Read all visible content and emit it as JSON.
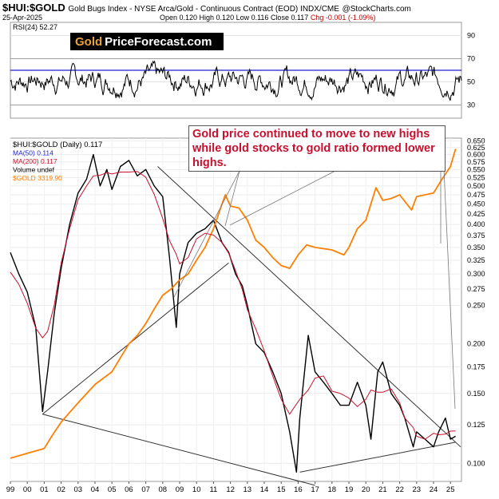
{
  "header": {
    "symbol": "$HUI:$GOLD",
    "description": "Gold Bugs Index - NYSE Arca/Gold - Continuous Contract (EOD) INDX/CME",
    "watermark": "@StockCharts.com",
    "date": "25-Apr-2025",
    "ohlc": "Open 0.120  High 0.120  Low 0.116  Close 0.117",
    "change": "Chg -0.001 (-1.09%)"
  },
  "logo": {
    "gold": "Gold",
    "rest": "PriceForecast.com"
  },
  "annotation": "Gold price continued to move to new highs while gold stocks to gold ratio formed lower highs.",
  "chart_data": [
    {
      "type": "line",
      "panel": "RSI",
      "legend": [
        "RSI(24) 52.27"
      ],
      "y_ticks": [
        30,
        50,
        70,
        90
      ],
      "ylim": [
        20,
        100
      ],
      "reference_lines": [
        70,
        60,
        30
      ],
      "colors": {
        "rsi": "#000000",
        "ref_60": "#1f1fcf",
        "ref_70_30": "#888888"
      }
    },
    {
      "type": "line",
      "panel": "price",
      "legend": [
        "$HUI:$GOLD (Daily) 0.117",
        "MA(50) 0.114",
        "MA(200) 0.117",
        "Volume undef",
        "$GOLD 3319.90"
      ],
      "x_tick_labels": [
        "99",
        "00",
        "01",
        "02",
        "03",
        "04",
        "05",
        "06",
        "07",
        "08",
        "09",
        "10",
        "11",
        "12",
        "13",
        "14",
        "15",
        "16",
        "17",
        "18",
        "19",
        "20",
        "21",
        "22",
        "23",
        "24",
        "25"
      ],
      "y_tick_labels": [
        "0.100",
        "0.125",
        "0.150",
        "0.175",
        "0.200",
        "0.250",
        "0.275",
        "0.300",
        "0.325",
        "0.350",
        "0.375",
        "0.400",
        "0.425",
        "0.450",
        "0.475",
        "0.500",
        "0.525",
        "0.550",
        "0.575",
        "0.600",
        "0.625",
        "0.650"
      ],
      "y_scale": "log",
      "ylim": [
        0.09,
        0.66
      ],
      "series": [
        {
          "name": "$HUI:$GOLD (Daily) 0.117",
          "color": "#000000",
          "x": [
            1999.0,
            1999.5,
            2000.0,
            2000.5,
            2000.9,
            2001.2,
            2001.6,
            2002.0,
            2002.5,
            2003.0,
            2003.5,
            2003.9,
            2004.3,
            2004.7,
            2005.0,
            2005.5,
            2006.0,
            2006.5,
            2007.0,
            2007.5,
            2008.0,
            2008.4,
            2008.8,
            2009.0,
            2009.5,
            2010.0,
            2010.5,
            2011.0,
            2011.5,
            2011.9,
            2012.3,
            2012.7,
            2013.0,
            2013.5,
            2014.0,
            2014.5,
            2015.0,
            2015.5,
            2015.9,
            2016.1,
            2016.6,
            2017.0,
            2017.5,
            2018.0,
            2018.5,
            2019.0,
            2019.5,
            2020.0,
            2020.3,
            2020.7,
            2021.0,
            2021.5,
            2022.0,
            2022.3,
            2022.8,
            2023.0,
            2023.5,
            2024.0,
            2024.3,
            2024.7,
            2025.0,
            2025.3
          ],
          "y": [
            0.34,
            0.3,
            0.27,
            0.22,
            0.135,
            0.17,
            0.24,
            0.31,
            0.4,
            0.48,
            0.52,
            0.6,
            0.5,
            0.55,
            0.49,
            0.56,
            0.58,
            0.53,
            0.55,
            0.5,
            0.47,
            0.33,
            0.22,
            0.3,
            0.36,
            0.38,
            0.39,
            0.41,
            0.36,
            0.34,
            0.3,
            0.28,
            0.25,
            0.2,
            0.19,
            0.17,
            0.15,
            0.12,
            0.095,
            0.13,
            0.21,
            0.17,
            0.16,
            0.15,
            0.14,
            0.14,
            0.16,
            0.14,
            0.115,
            0.17,
            0.18,
            0.15,
            0.14,
            0.13,
            0.11,
            0.12,
            0.115,
            0.11,
            0.12,
            0.13,
            0.115,
            0.117
          ]
        },
        {
          "name": "$GOLD 3319.90",
          "color": "#ff7f00",
          "x": [
            1999.0,
            2000.0,
            2001.0,
            2001.5,
            2002.0,
            2003.0,
            2004.0,
            2005.0,
            2006.0,
            2006.5,
            2007.0,
            2007.5,
            2008.0,
            2008.5,
            2009.0,
            2009.5,
            2010.0,
            2010.5,
            2011.0,
            2011.5,
            2011.7,
            2012.0,
            2012.5,
            2013.0,
            2013.5,
            2014.0,
            2014.5,
            2015.0,
            2015.5,
            2016.0,
            2016.5,
            2017.0,
            2018.0,
            2018.7,
            2019.0,
            2019.5,
            2020.0,
            2020.6,
            2021.0,
            2021.5,
            2022.0,
            2022.7,
            2023.0,
            2023.5,
            2024.0,
            2024.5,
            2025.0,
            2025.3
          ],
          "y": [
            0.103,
            0.106,
            0.109,
            0.118,
            0.127,
            0.142,
            0.158,
            0.17,
            0.2,
            0.21,
            0.225,
            0.245,
            0.265,
            0.275,
            0.29,
            0.3,
            0.325,
            0.35,
            0.39,
            0.45,
            0.475,
            0.445,
            0.44,
            0.41,
            0.365,
            0.35,
            0.33,
            0.315,
            0.31,
            0.335,
            0.355,
            0.35,
            0.345,
            0.335,
            0.35,
            0.39,
            0.41,
            0.495,
            0.46,
            0.465,
            0.475,
            0.435,
            0.47,
            0.475,
            0.48,
            0.52,
            0.56,
            0.62
          ]
        }
      ]
    }
  ]
}
